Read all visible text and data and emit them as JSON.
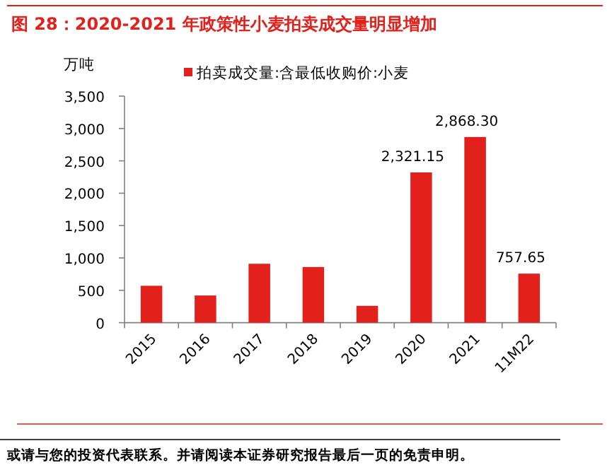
{
  "chart_data": {
    "type": "bar",
    "title": "图 28：2020-2021 年政策性小麦拍卖成交量明显增加",
    "ylabel": "万吨",
    "categories": [
      "2015",
      "2016",
      "2017",
      "2018",
      "2019",
      "2020",
      "2021",
      "11M22"
    ],
    "series": [
      {
        "name": "拍卖成交量:含最低收购价:小麦",
        "color": "#e3211c",
        "values": [
          570,
          420,
          910,
          860,
          260,
          2321.15,
          2868.3,
          757.65
        ],
        "value_labels": [
          null,
          null,
          null,
          null,
          null,
          "2,321.15",
          "2,868.30",
          "757.65"
        ]
      }
    ],
    "ylim": [
      0,
      3500
    ],
    "yticks": [
      {
        "value": 0,
        "label": "0"
      },
      {
        "value": 500,
        "label": "500"
      },
      {
        "value": 1000,
        "label": "1,000"
      },
      {
        "value": 1500,
        "label": "1,500"
      },
      {
        "value": 2000,
        "label": "2,000"
      },
      {
        "value": 2500,
        "label": "2,500"
      },
      {
        "value": 3000,
        "label": "3,000"
      },
      {
        "value": 3500,
        "label": "3,500"
      }
    ],
    "legend": "top",
    "annotations": [
      "或请与您的投资代表联系。并请阅读本证券研究报告最后一页的免责申明。"
    ]
  }
}
